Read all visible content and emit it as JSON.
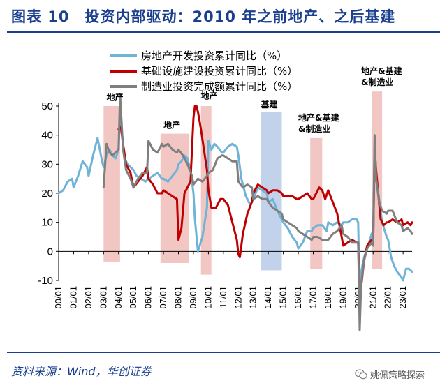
{
  "header": {
    "title": "图表 10　投资内部驱动：2010 年之前地产、之后基建"
  },
  "footer": {
    "source": "资料来源：Wind，华创证券",
    "watermark": "姚佩策略探索"
  },
  "chart_data": {
    "type": "line",
    "ylim": [
      -10,
      50
    ],
    "yticks": [
      -10,
      0,
      10,
      20,
      30,
      40,
      50
    ],
    "xlim": [
      2000.0,
      2023.6
    ],
    "xtick_labels": [
      "00/01",
      "01/01",
      "02/01",
      "03/01",
      "04/01",
      "05/01",
      "06/01",
      "07/01",
      "08/01",
      "09/01",
      "10/01",
      "11/01",
      "12/01",
      "13/01",
      "14/01",
      "15/01",
      "16/01",
      "17/01",
      "18/01",
      "19/01",
      "20/01",
      "21/01",
      "22/01",
      "23/01"
    ],
    "legend_placement": "top-center",
    "series": [
      {
        "name": "房地产开发投资累计同比（%）",
        "color": "#6fb3d6",
        "x": [
          2000.0,
          2000.3,
          2000.6,
          2000.9,
          2001.0,
          2001.3,
          2001.6,
          2001.9,
          2002.0,
          2002.3,
          2002.6,
          2002.9,
          2003.0,
          2003.2,
          2003.4,
          2003.6,
          2003.8,
          2004.0,
          2004.1,
          2004.2,
          2004.3,
          2004.4,
          2004.6,
          2004.8,
          2005.0,
          2005.2,
          2005.5,
          2005.8,
          2006.0,
          2006.3,
          2006.6,
          2006.9,
          2007.0,
          2007.3,
          2007.6,
          2007.9,
          2008.0,
          2008.2,
          2008.4,
          2008.6,
          2008.8,
          2009.0,
          2009.1,
          2009.3,
          2009.6,
          2009.9,
          2010.0,
          2010.2,
          2010.4,
          2010.6,
          2010.9,
          2011.0,
          2011.3,
          2011.6,
          2011.9,
          2012.0,
          2012.2,
          2012.5,
          2012.8,
          2013.0,
          2013.3,
          2013.6,
          2013.9,
          2014.0,
          2014.3,
          2014.6,
          2014.9,
          2015.0,
          2015.3,
          2015.6,
          2015.9,
          2016.0,
          2016.3,
          2016.6,
          2016.9,
          2017.0,
          2017.3,
          2017.6,
          2017.9,
          2018.0,
          2018.3,
          2018.6,
          2018.9,
          2019.0,
          2019.3,
          2019.6,
          2019.9,
          2020.0,
          2020.1,
          2020.2,
          2020.4,
          2020.6,
          2020.9,
          2021.0,
          2021.1,
          2021.2,
          2021.4,
          2021.6,
          2021.9,
          2022.0,
          2022.2,
          2022.4,
          2022.6,
          2022.9,
          2023.0,
          2023.2,
          2023.4,
          2023.6
        ],
        "values": [
          20,
          21,
          24,
          25,
          22,
          26,
          31,
          29,
          26,
          33,
          39,
          31,
          29,
          33,
          35,
          33,
          32,
          35,
          48,
          43,
          36,
          32,
          30,
          29,
          28,
          26,
          25,
          24,
          25,
          26,
          27,
          25,
          25,
          24,
          26,
          28,
          30,
          31,
          33,
          32,
          28,
          20,
          11,
          0,
          5,
          15,
          38,
          35,
          37,
          36,
          34,
          34,
          36,
          37,
          36,
          33,
          25,
          19,
          16,
          18,
          22,
          21,
          20,
          17,
          18,
          14,
          11,
          10,
          8,
          5,
          3,
          1,
          3,
          7,
          7,
          8,
          9,
          9,
          7,
          10,
          9,
          10,
          9,
          10,
          10,
          11,
          11,
          10,
          -16,
          -7,
          -2,
          1,
          6,
          7,
          39,
          25,
          18,
          10,
          5,
          4,
          -2,
          -5,
          -7,
          -9,
          -10,
          -6,
          -6,
          -7
        ]
      },
      {
        "name": "基础设施建设投资累计同比（%）",
        "color": "#c00000",
        "x": [
          2004.0,
          2004.15,
          2004.3,
          2004.5,
          2004.8,
          2005.0,
          2005.3,
          2005.6,
          2005.9,
          2006.0,
          2006.3,
          2006.6,
          2006.9,
          2007.0,
          2007.3,
          2007.6,
          2007.9,
          2008.0,
          2008.2,
          2008.4,
          2008.6,
          2008.8,
          2009.0,
          2009.1,
          2009.2,
          2009.3,
          2009.5,
          2009.7,
          2009.9,
          2010.0,
          2010.2,
          2010.5,
          2010.8,
          2011.0,
          2011.3,
          2011.6,
          2011.9,
          2012.0,
          2012.1,
          2012.3,
          2012.6,
          2012.9,
          2013.0,
          2013.3,
          2013.6,
          2013.9,
          2014.0,
          2014.3,
          2014.6,
          2014.9,
          2015.0,
          2015.3,
          2015.6,
          2015.9,
          2016.0,
          2016.3,
          2016.6,
          2016.9,
          2017.0,
          2017.2,
          2017.4,
          2017.6,
          2017.8,
          2018.0,
          2018.3,
          2018.6,
          2018.9,
          2019.0,
          2019.3,
          2019.6,
          2019.9,
          2020.0,
          2020.1,
          2020.2,
          2020.4,
          2020.6,
          2020.9,
          2021.0,
          2021.1,
          2021.2,
          2021.3,
          2021.5,
          2021.7,
          2021.9,
          2022.0,
          2022.3,
          2022.6,
          2022.9,
          2023.0,
          2023.3,
          2023.5,
          2023.6
        ],
        "values": [
          42,
          43,
          37,
          30,
          27,
          22,
          24,
          26,
          29,
          25,
          23,
          20,
          20,
          21,
          20,
          19,
          18,
          4,
          8,
          20,
          22,
          24,
          46,
          50,
          50,
          48,
          42,
          35,
          28,
          21,
          15,
          15,
          18,
          18,
          16,
          10,
          4,
          -1,
          -2,
          6,
          13,
          17,
          20,
          23,
          22,
          21,
          20,
          21,
          21,
          20,
          19,
          19,
          19,
          18,
          18,
          19,
          20,
          18,
          18,
          20,
          22,
          21,
          18,
          21,
          17,
          13,
          5,
          2,
          3,
          4,
          3,
          3,
          -16,
          -12,
          -3,
          2,
          4,
          3,
          35,
          28,
          22,
          11,
          9,
          10,
          10,
          11,
          10,
          11,
          9,
          10,
          9,
          10
        ]
      },
      {
        "name": "制造业投资完成额累计同比（%）",
        "color": "#7f7f7f",
        "x": [
          2003.0,
          2003.2,
          2003.4,
          2003.6,
          2003.8,
          2004.0,
          2004.1,
          2004.3,
          2004.5,
          2004.8,
          2005.0,
          2005.3,
          2005.6,
          2005.9,
          2006.0,
          2006.3,
          2006.6,
          2006.9,
          2007.0,
          2007.3,
          2007.6,
          2007.9,
          2008.0,
          2008.3,
          2008.6,
          2008.9,
          2009.0,
          2009.3,
          2009.6,
          2009.9,
          2010.0,
          2010.3,
          2010.6,
          2010.9,
          2011.0,
          2011.3,
          2011.6,
          2011.9,
          2012.0,
          2012.3,
          2012.6,
          2012.9,
          2013.0,
          2013.3,
          2013.6,
          2013.9,
          2014.0,
          2014.3,
          2014.6,
          2014.9,
          2015.0,
          2015.3,
          2015.6,
          2015.9,
          2016.0,
          2016.3,
          2016.6,
          2016.9,
          2017.0,
          2017.3,
          2017.6,
          2017.9,
          2018.0,
          2018.3,
          2018.6,
          2018.9,
          2019.0,
          2019.3,
          2019.6,
          2019.9,
          2020.0,
          2020.1,
          2020.2,
          2020.4,
          2020.6,
          2020.9,
          2021.0,
          2021.1,
          2021.2,
          2021.4,
          2021.6,
          2021.9,
          2022.0,
          2022.3,
          2022.6,
          2022.9,
          2023.0,
          2023.3,
          2023.5,
          2023.6
        ],
        "values": [
          22,
          37,
          34,
          33,
          34,
          35,
          54,
          35,
          28,
          25,
          22,
          25,
          27,
          27,
          38,
          35,
          34,
          37,
          36,
          37,
          35,
          34,
          35,
          33,
          30,
          26,
          23,
          25,
          24,
          26,
          27,
          28,
          32,
          33,
          33,
          32,
          31,
          31,
          24,
          22,
          23,
          22,
          18,
          19,
          18,
          18,
          17,
          15,
          14,
          13,
          11,
          10,
          9,
          8,
          7,
          6,
          5,
          4,
          5,
          5,
          4,
          4,
          4,
          6,
          7,
          9,
          6,
          5,
          3,
          3,
          3,
          -27,
          -11,
          -3,
          1,
          3,
          2,
          40,
          25,
          17,
          14,
          13,
          14,
          14,
          10,
          9,
          7,
          8,
          7,
          6
        ]
      }
    ],
    "annotations": [
      {
        "lines": [
          "地产"
        ],
        "x_start": 2003.0,
        "x_end": 2004.1,
        "y_top": 50,
        "y_bottom": -3.5,
        "fill": "#f2c7c3",
        "label_x": 2003.2,
        "label_y": 52
      },
      {
        "lines": [
          "地产"
        ],
        "x_start": 2006.8,
        "x_end": 2008.7,
        "y_top": 40.5,
        "y_bottom": -4,
        "fill": "#f2c7c3",
        "label_x": 2007.0,
        "label_y": 42.5
      },
      {
        "lines": [
          "地产"
        ],
        "x_start": 2009.5,
        "x_end": 2010.2,
        "y_top": 50,
        "y_bottom": -8,
        "fill": "#f2c7c3",
        "label_x": 2009.5,
        "label_y": 52.5
      },
      {
        "lines": [
          "基建"
        ],
        "x_start": 2013.5,
        "x_end": 2014.9,
        "y_top": 48,
        "y_bottom": -6.5,
        "fill": "#c2d2ea",
        "label_x": 2013.5,
        "label_y": 49.5
      },
      {
        "lines": [
          "地产&基建",
          "&制造业"
        ],
        "x_start": 2016.8,
        "x_end": 2017.6,
        "y_top": 39,
        "y_bottom": -6,
        "fill": "#f2c7c3",
        "label_x": 2016.0,
        "label_y": 45
      },
      {
        "lines": [
          "地产&基建",
          "&制造业"
        ],
        "x_start": 2020.9,
        "x_end": 2021.6,
        "y_top": 55,
        "y_bottom": -6,
        "fill": "#f2c7c3",
        "label_x": 2020.2,
        "label_y": 61
      }
    ]
  }
}
